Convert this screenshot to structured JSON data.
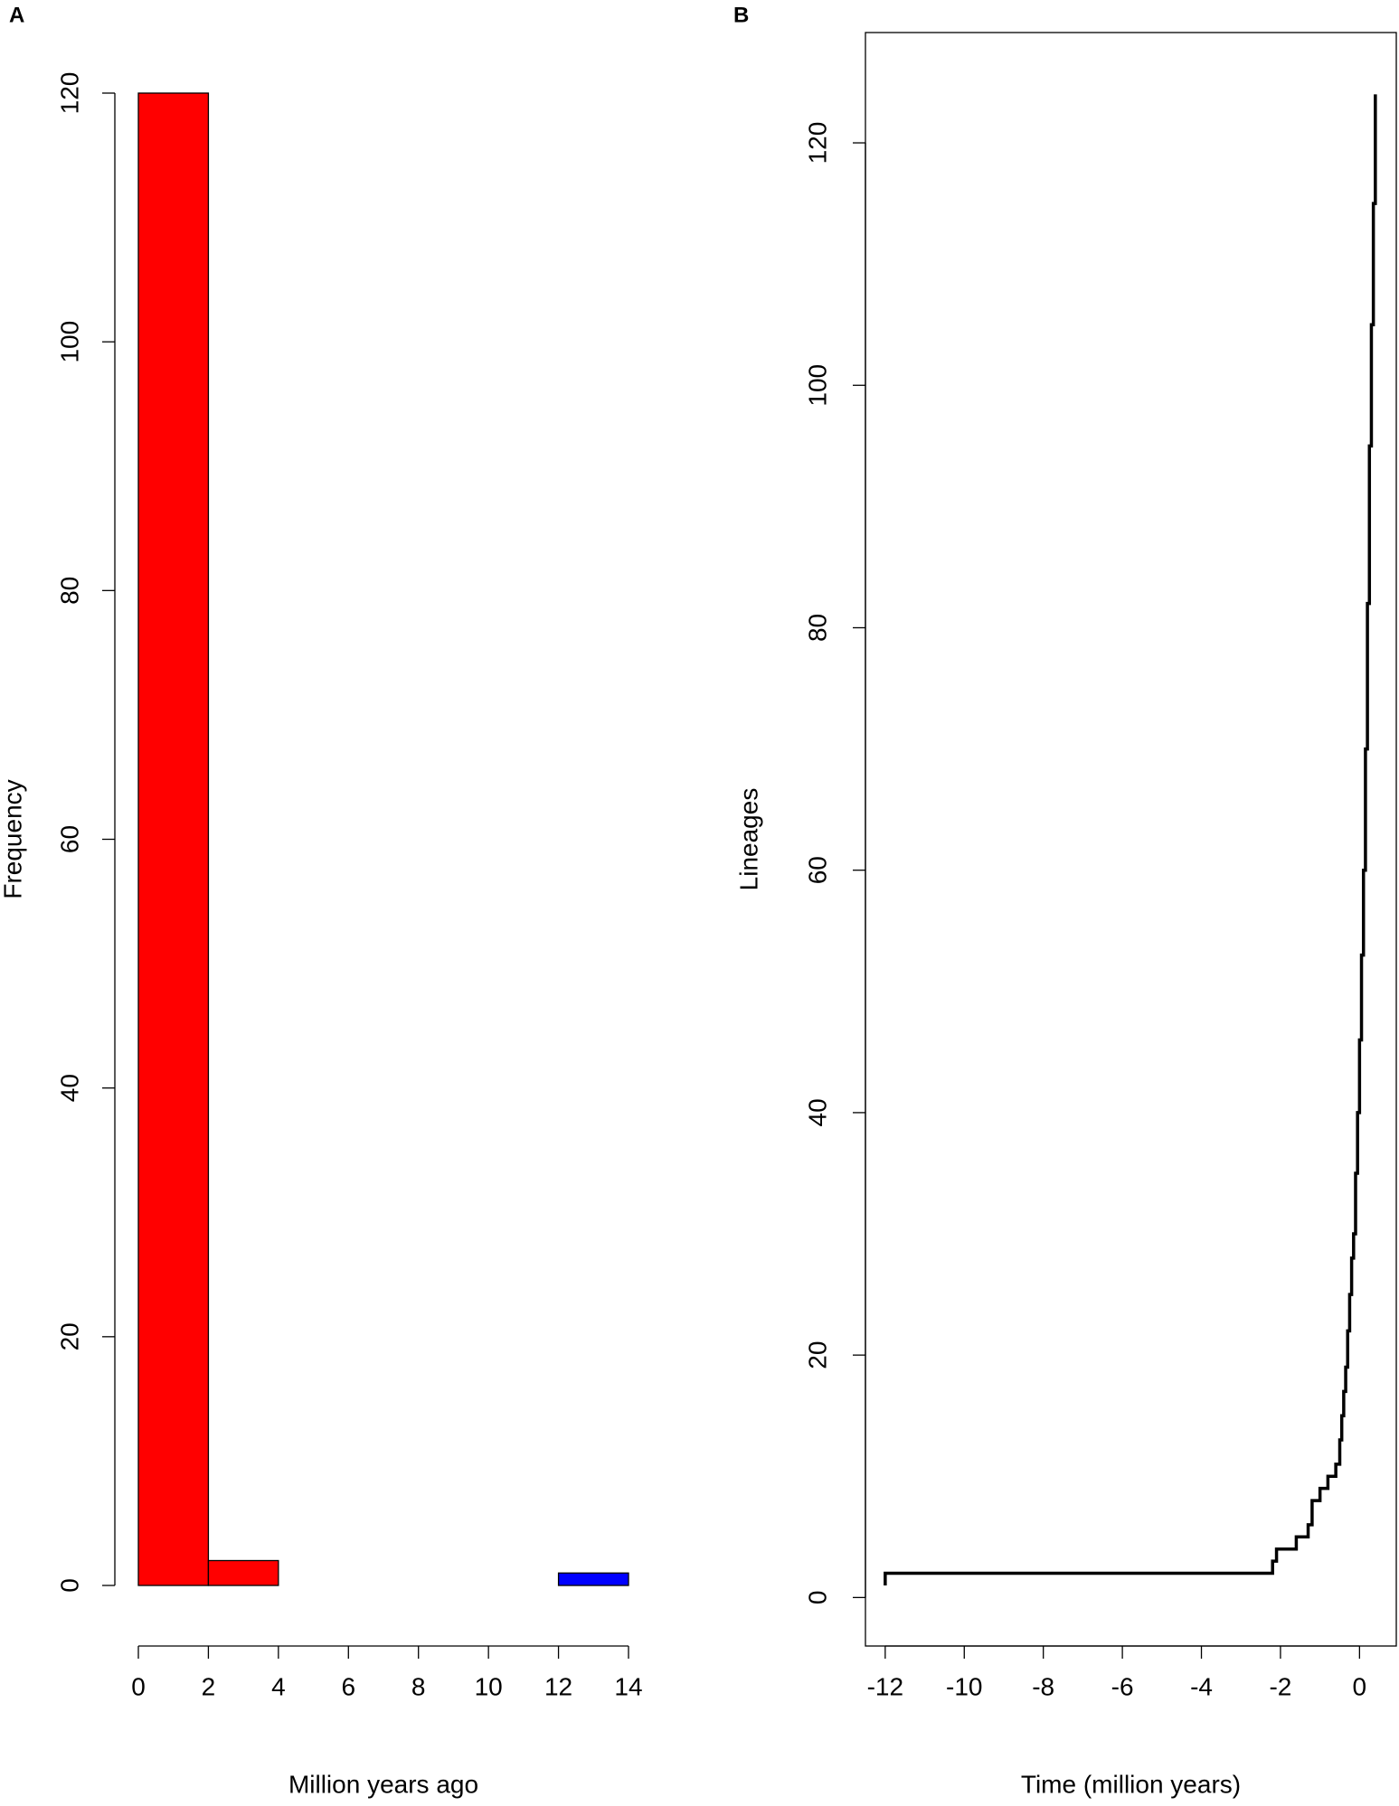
{
  "chart_data": [
    {
      "type": "histogram",
      "panel": "A",
      "xlabel": "Million years ago",
      "ylabel": "Frequency",
      "bins": [
        0,
        2,
        4,
        6,
        8,
        10,
        12,
        14
      ],
      "values": [
        120,
        2,
        0,
        0,
        0,
        0,
        1
      ],
      "colors": [
        "#ff0000",
        "#ff0000",
        "#ff0000",
        "#ff0000",
        "#ff0000",
        "#ff0000",
        "#0000ff"
      ],
      "xlim": [
        0,
        14
      ],
      "xticks": [
        0,
        2,
        4,
        6,
        8,
        10,
        12,
        14
      ],
      "ylim": [
        0,
        120
      ],
      "yticks": [
        0,
        20,
        40,
        60,
        80,
        100,
        120
      ]
    },
    {
      "type": "line",
      "panel": "B",
      "xlabel": "Time (million years)",
      "ylabel": "Lineages",
      "color": "#000000",
      "x": [
        -12,
        -12,
        -2.2,
        -2.1,
        -1.6,
        -1.3,
        -1.2,
        -1.0,
        -0.8,
        -0.6,
        -0.5,
        -0.45,
        -0.4,
        -0.35,
        -0.3,
        -0.25,
        -0.2,
        -0.15,
        -0.1,
        -0.05,
        0,
        0.05,
        0.1,
        0.15,
        0.2,
        0.25,
        0.3,
        0.35,
        0.4
      ],
      "values": [
        1,
        2,
        3,
        4,
        5,
        6,
        8,
        9,
        10,
        11,
        13,
        15,
        17,
        19,
        22,
        25,
        28,
        30,
        35,
        40,
        46,
        53,
        60,
        70,
        82,
        95,
        105,
        115,
        124
      ],
      "xlim": [
        -12.5,
        0.93
      ],
      "xticks": [
        -12,
        -10,
        -8,
        -6,
        -4,
        -2,
        0
      ],
      "ylim": [
        -4,
        129.1
      ],
      "yticks": [
        0,
        20,
        40,
        60,
        80,
        100,
        120
      ]
    }
  ]
}
